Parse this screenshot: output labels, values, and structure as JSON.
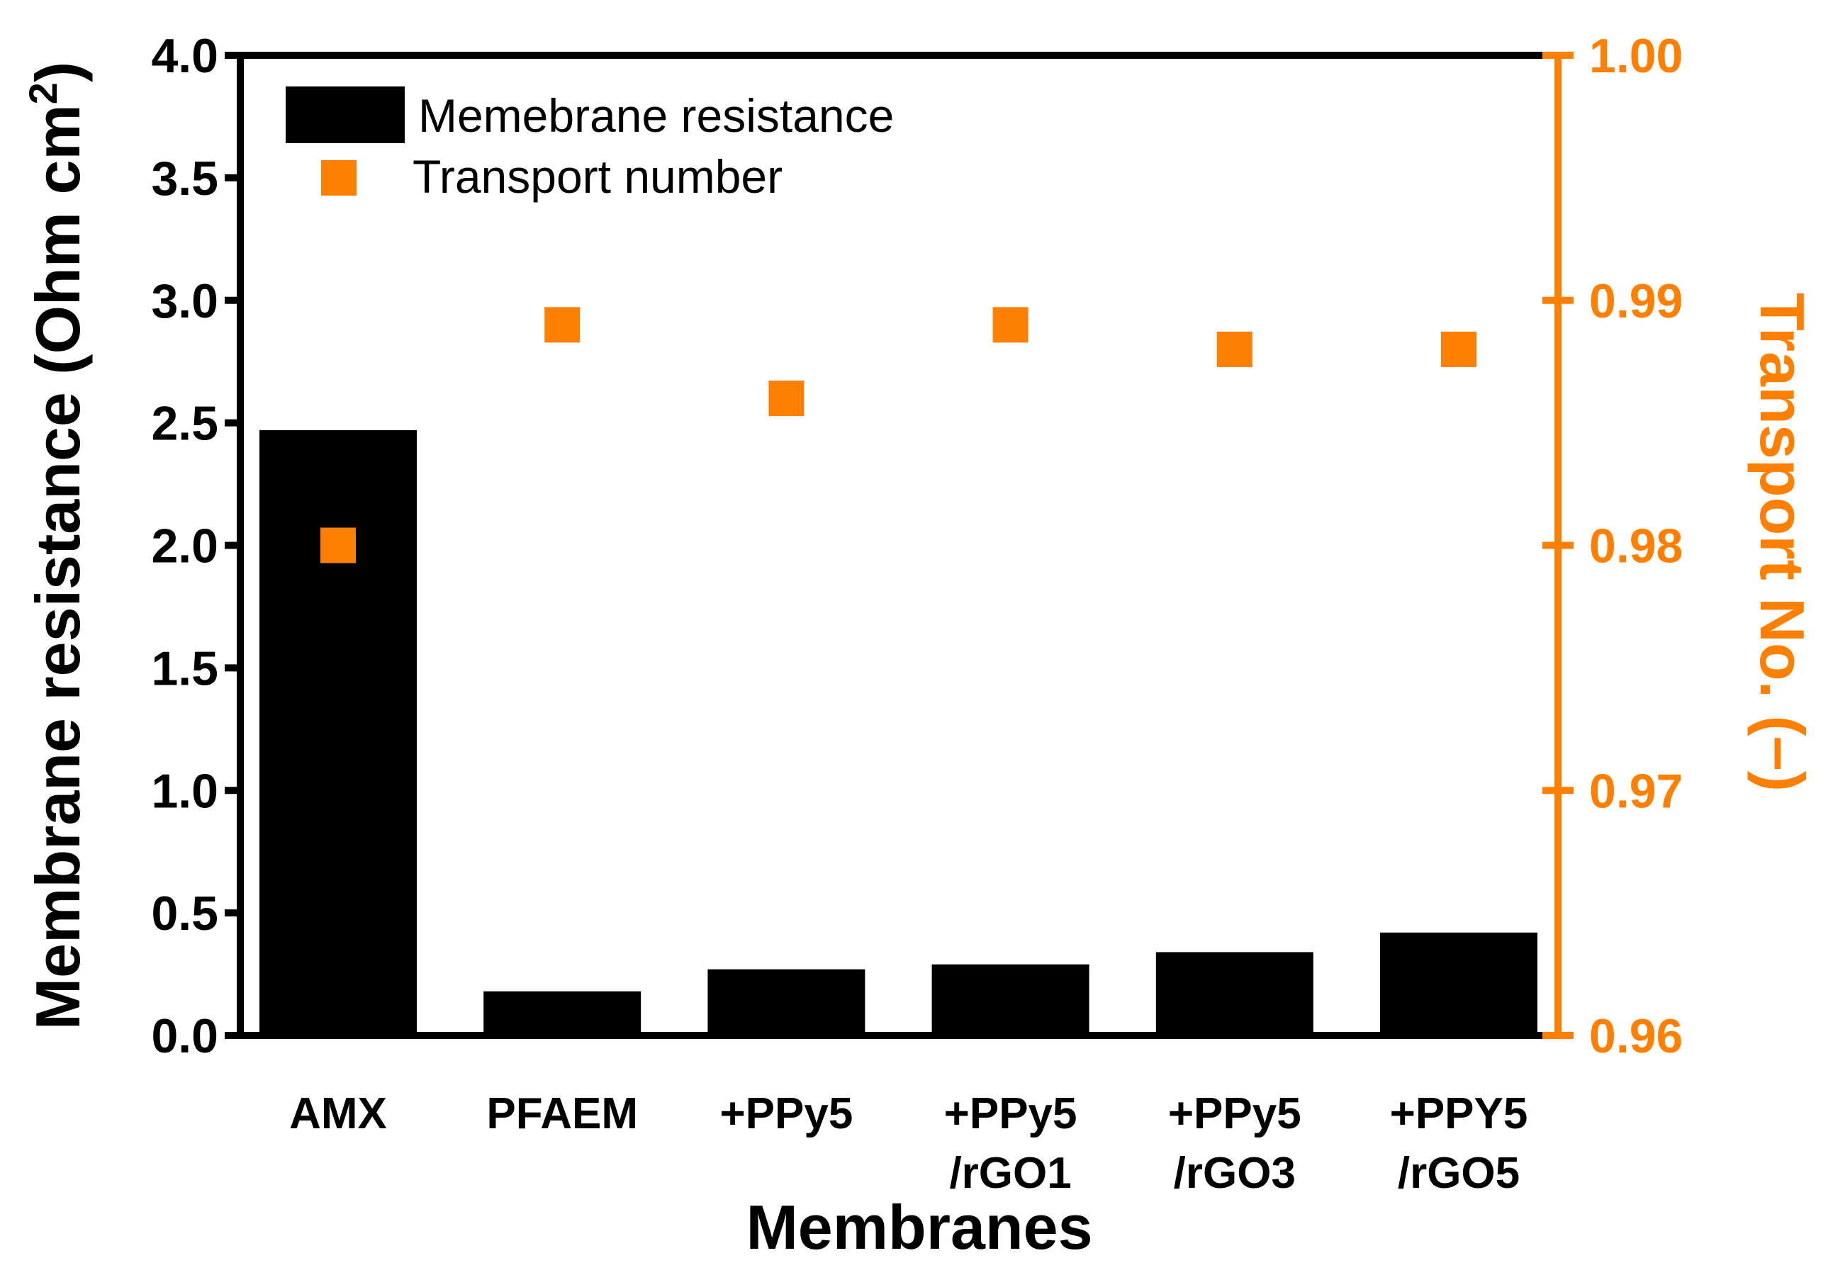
{
  "chart_data": {
    "type": "bar+scatter",
    "xlabel": "Membranes",
    "ylabel_left": "Membrane resistance (Ohm cm",
    "ylabel_left_sup": "2",
    "ylabel_left_close": ")",
    "ylabel_right": "Transport No. (–)",
    "categories": [
      [
        "AMX"
      ],
      [
        "PFAEM"
      ],
      [
        "+PPy5"
      ],
      [
        "+PPy5",
        "/rGO1"
      ],
      [
        "+PPy5",
        "/rGO3"
      ],
      [
        "+PPY5",
        "/rGO5"
      ]
    ],
    "series": [
      {
        "name": "Memebrane resistance",
        "type": "bar",
        "axis": "left",
        "color": "#000000",
        "values": [
          2.47,
          0.18,
          0.27,
          0.29,
          0.34,
          0.42
        ]
      },
      {
        "name": "Transport number",
        "type": "scatter",
        "axis": "right",
        "color": "#FF8000",
        "values": [
          0.98,
          0.989,
          0.986,
          0.989,
          0.988,
          0.988
        ]
      }
    ],
    "ylim_left": [
      0,
      4
    ],
    "yticks_left": [
      "0.0",
      "0.5",
      "1.0",
      "1.5",
      "2.0",
      "2.5",
      "3.0",
      "3.5",
      "4.0"
    ],
    "ylim_right": [
      0.96,
      1.0
    ],
    "yticks_right": [
      "0.96",
      "0.97",
      "0.98",
      "0.99",
      "1.00"
    ],
    "right_axis_color": "#FF8000",
    "legend": {
      "position": "top-left",
      "entries": [
        "Memebrane resistance",
        "Transport number"
      ]
    }
  }
}
